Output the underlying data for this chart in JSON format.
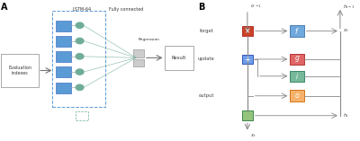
{
  "bg_color": "#ffffff",
  "label_A": "A",
  "label_B": "B",
  "eval_box_text": "Evaluation\nindexes",
  "lstm_label": "LSTM-64",
  "fc_label": "Fully connected",
  "regression_label": "Regression",
  "result_label": "Result",
  "lstm_blue": "#5b9bd5",
  "lstm_teal": "#70ad99",
  "result_box_color": "#ffffff",
  "forget_label": "forget",
  "update_label": "update",
  "output_label": "output",
  "f_box_color": "#6fa8dc",
  "g_box_color": "#e06666",
  "i_box_color": "#76b89a",
  "o_box_color": "#f6b26b",
  "mult_red_color": "#cc4125",
  "update_blue_color": "#6d9eeb",
  "small_green_color": "#93c47d",
  "line_color": "#888888",
  "arrow_color": "#888888",
  "node_color": "#70ad99"
}
